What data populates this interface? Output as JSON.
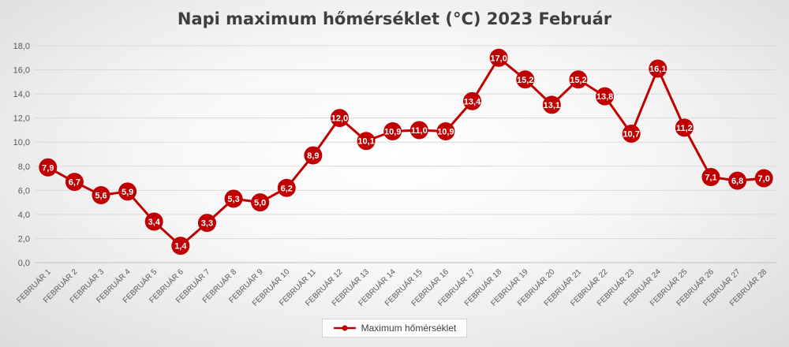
{
  "chart_data": {
    "type": "line",
    "title": "Napi maximum hőmérséklet (°C) 2023 Február",
    "xlabel": "",
    "ylabel": "",
    "categories": [
      "FEBRUÁR 1",
      "FEBRUÁR 2",
      "FEBRUÁR 3",
      "FEBRUÁR 4",
      "FEBRUÁR 5",
      "FEBRUÁR 6",
      "FEBRUÁR 7",
      "FEBRUÁR 8",
      "FEBRUÁR 9",
      "FEBRUÁR 10",
      "FEBRUÁR 11",
      "FEBRUÁR 12",
      "FEBRUÁR 13",
      "FEBRUÁR 14",
      "FEBRUÁR 15",
      "FEBRUÁR 16",
      "FEBRUÁR 17",
      "FEBRUÁR 18",
      "FEBRUÁR 19",
      "FEBRUÁR 20",
      "FEBRUÁR 21",
      "FEBRUÁR 22",
      "FEBRUÁR 23",
      "FEBRUÁR 24",
      "FEBRUÁR 25",
      "FEBRUÁR 26",
      "FEBRUÁR 27",
      "FEBRUÁR 28"
    ],
    "series": [
      {
        "name": "Maximum hőmérséklet",
        "color": "#c00000",
        "values": [
          7.9,
          6.7,
          5.6,
          5.9,
          3.4,
          1.4,
          3.3,
          5.3,
          5.0,
          6.2,
          8.9,
          12.0,
          10.1,
          10.9,
          11.0,
          10.9,
          13.4,
          17.0,
          15.2,
          13.1,
          15.2,
          13.8,
          10.7,
          16.1,
          11.2,
          7.1,
          6.8,
          7.0
        ],
        "data_labels": [
          "7,9",
          "6,7",
          "5,6",
          "5,9",
          "3,4",
          "1,4",
          "3,3",
          "5,3",
          "5,0",
          "6,2",
          "8,9",
          "12,0",
          "10,1",
          "10,9",
          "11,0",
          "10,9",
          "13,4",
          "17,0",
          "15,2",
          "13,1",
          "15,2",
          "13,8",
          "10,7",
          "16,1",
          "11,2",
          "7,1",
          "6,8",
          "7,0"
        ]
      }
    ],
    "ylim": [
      0,
      18
    ],
    "yticks": [
      0,
      2,
      4,
      6,
      8,
      10,
      12,
      14,
      16,
      18
    ],
    "ytick_labels": [
      "0,0",
      "2,0",
      "4,0",
      "6,0",
      "8,0",
      "10,0",
      "12,0",
      "14,0",
      "16,0",
      "18,0"
    ],
    "grid": true,
    "legend_position": "bottom"
  }
}
